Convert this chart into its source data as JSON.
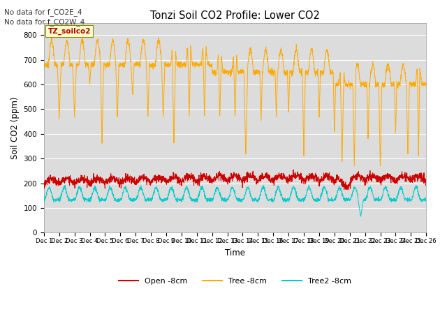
{
  "title": "Tonzi Soil CO2 Profile: Lower CO2",
  "xlabel": "Time",
  "ylabel": "Soil CO2 (ppm)",
  "ylim": [
    0,
    850
  ],
  "yticks": [
    0,
    100,
    200,
    300,
    400,
    500,
    600,
    700,
    800
  ],
  "bg_color": "#dcdcdc",
  "annotation1": "No data for f_CO2E_4",
  "annotation2": "No data for f_CO2W_4",
  "box_label": "TZ_soilco2",
  "n_days": 25,
  "pts_per_day": 96,
  "tree_color": "#ffaa00",
  "open_color": "#cc0000",
  "tree2_color": "#00cccc",
  "legend_labels": [
    "Open -8cm",
    "Tree -8cm",
    "Tree2 -8cm"
  ]
}
